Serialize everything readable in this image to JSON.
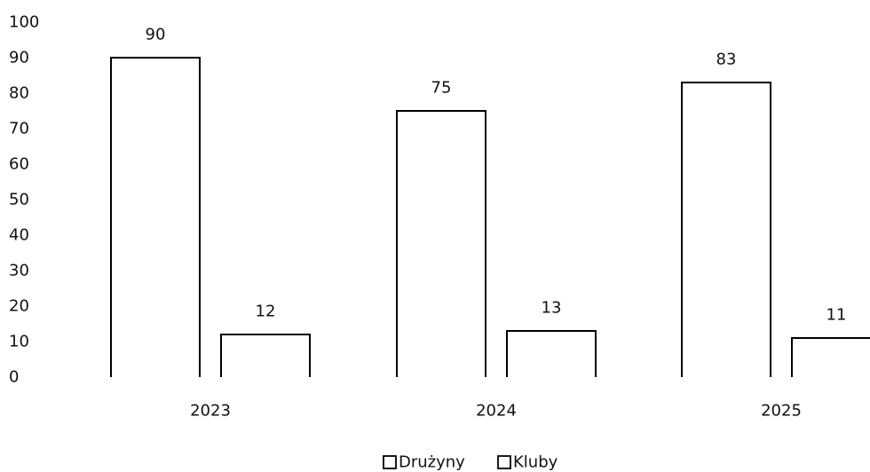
{
  "chart_data": {
    "type": "bar",
    "categories": [
      "2023",
      "2024",
      "2025"
    ],
    "series": [
      {
        "name": "Drużyny",
        "values": [
          90,
          75,
          83
        ]
      },
      {
        "name": "Kluby",
        "values": [
          12,
          13,
          11
        ]
      }
    ],
    "ylim": [
      0,
      100
    ],
    "yticks": [
      0,
      10,
      20,
      30,
      40,
      50,
      60,
      70,
      80,
      90,
      100
    ],
    "title": "",
    "xlabel": "",
    "ylabel": "",
    "grid": false,
    "legend_position": "bottom-center",
    "bar_fill": "#ffffff",
    "bar_stroke": "#000000"
  }
}
